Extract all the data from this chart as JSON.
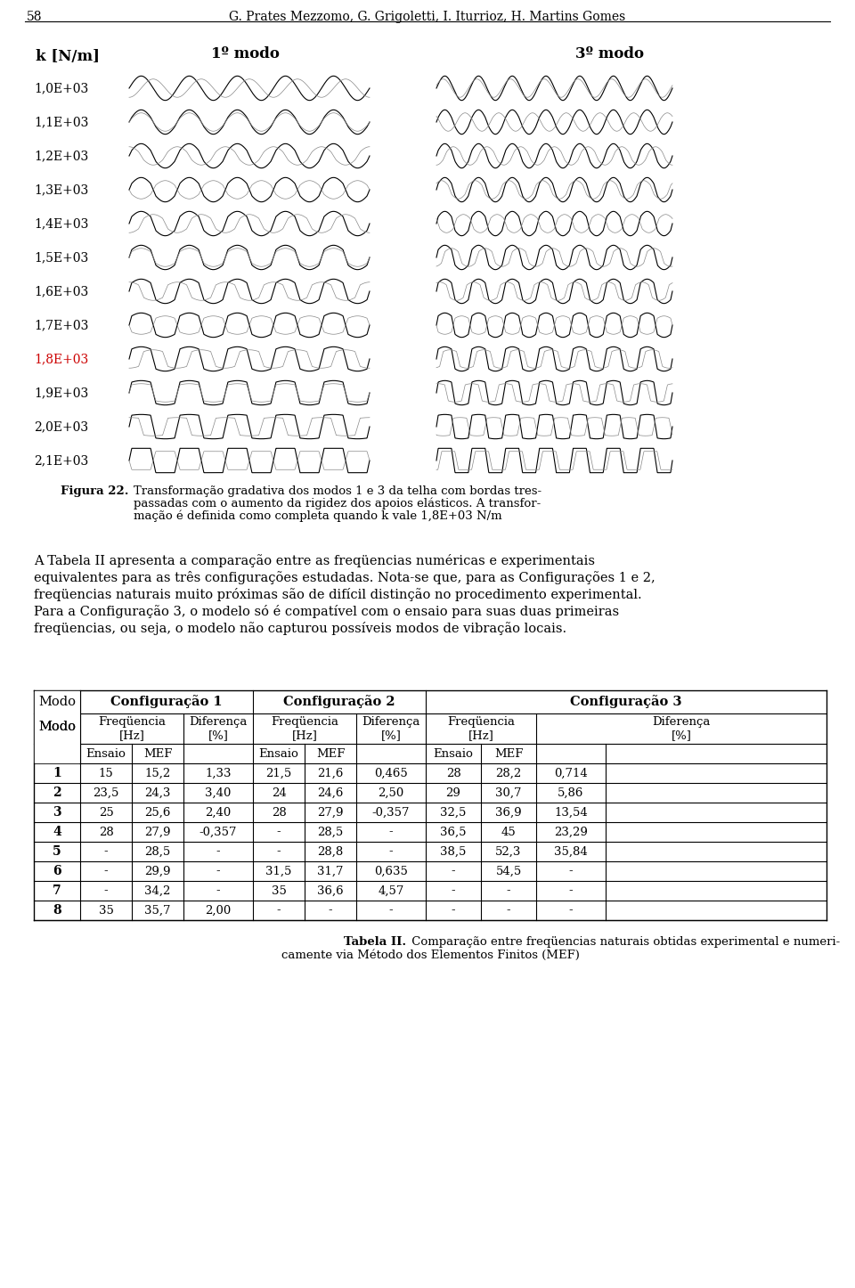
{
  "page_number": "58",
  "header_authors": "G. Prates Mezzomo, G. Grigoletti, I. Iturrioz, H. Martins Gomes",
  "fig_label": "k [N/m]",
  "mode1_label": "1º modo",
  "mode3_label": "3º modo",
  "k_values": [
    "1,0E+03",
    "1,1E+03",
    "1,2E+03",
    "1,3E+03",
    "1,4E+03",
    "1,5E+03",
    "1,6E+03",
    "1,7E+03",
    "1,8E+03",
    "1,9E+03",
    "2,0E+03",
    "2,1E+03"
  ],
  "k_highlight": "1,8E+03",
  "k_highlight_color": "#cc0000",
  "caption_fig_bold": "Figura 22.",
  "caption_text_line1": "Transformação gradativa dos modos 1 e 3 da telha com bordas tres-",
  "caption_text_line2": "passadas com o aumento da rigidez dos apoios elásticos. A transfor-",
  "caption_text_line3": "mação é definida como completa quando k vale 1,8E+03 N/m",
  "para_lines": [
    "A Tabela II apresenta a comparação entre as freqüencias numéricas e experimentais",
    "equivalentes para as três configurações estudadas. Nota-se que, para as Configurações 1 e 2,",
    "freqüencias naturais muito próximas são de difícil distinção no procedimento experimental.",
    "Para a Configuração 3, o modelo só é compatível com o ensaio para suas duas primeiras",
    "freqüencias, ou seja, o modelo não capturou possíveis modos de vibração locais."
  ],
  "table_caption_bold": "Tabela II.",
  "table_caption_line1": "Comparação entre freqüencias naturais obtidas experimental e numeri-",
  "table_caption_line2": "camente via Método dos Elementos Finitos (MEF)",
  "rows": [
    [
      "1",
      "15",
      "15,2",
      "1,33",
      "21,5",
      "21,6",
      "0,465",
      "28",
      "28,2",
      "0,714"
    ],
    [
      "2",
      "23,5",
      "24,3",
      "3,40",
      "24",
      "24,6",
      "2,50",
      "29",
      "30,7",
      "5,86"
    ],
    [
      "3",
      "25",
      "25,6",
      "2,40",
      "28",
      "27,9",
      "-0,357",
      "32,5",
      "36,9",
      "13,54"
    ],
    [
      "4",
      "28",
      "27,9",
      "-0,357",
      "-",
      "28,5",
      "-",
      "36,5",
      "45",
      "23,29"
    ],
    [
      "5",
      "-",
      "28,5",
      "-",
      "-",
      "28,8",
      "-",
      "38,5",
      "52,3",
      "35,84"
    ],
    [
      "6",
      "-",
      "29,9",
      "-",
      "31,5",
      "31,7",
      "0,635",
      "-",
      "54,5",
      "-"
    ],
    [
      "7",
      "-",
      "34,2",
      "-",
      "35",
      "36,6",
      "4,57",
      "-",
      "-",
      "-"
    ],
    [
      "8",
      "35",
      "35,7",
      "2,00",
      "-",
      "-",
      "-",
      "-",
      "-",
      "-"
    ]
  ],
  "background_color": "#ffffff"
}
